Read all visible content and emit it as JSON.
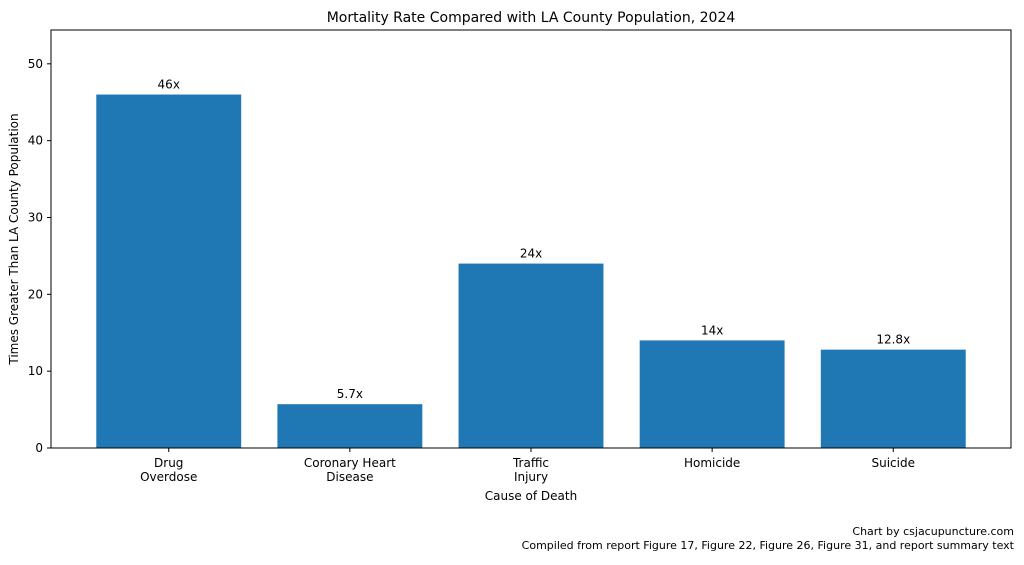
{
  "chart_data": {
    "type": "bar",
    "title": "Mortality Rate Compared with LA County Population, 2024",
    "xlabel": "Cause of Death",
    "ylabel": "Times Greater Than LA County Population",
    "categories": [
      [
        "Drug",
        "Overdose"
      ],
      [
        "Coronary Heart",
        "Disease"
      ],
      [
        "Traffic",
        "Injury"
      ],
      [
        "Homicide"
      ],
      [
        "Suicide"
      ]
    ],
    "values": [
      46,
      5.7,
      24,
      14,
      12.8
    ],
    "data_labels": [
      "46x",
      "5.7x",
      "24x",
      "14x",
      "12.8x"
    ],
    "ylim": [
      0,
      54.4
    ],
    "yticks": [
      0,
      10,
      20,
      30,
      40,
      50
    ],
    "bar_color": "#1f77b4",
    "grid": false,
    "legend": "none"
  },
  "footer": {
    "credit": "Chart by csjacupuncture.com",
    "source": "Compiled from report Figure 17, Figure 22, Figure 26, Figure 31, and report summary text"
  }
}
